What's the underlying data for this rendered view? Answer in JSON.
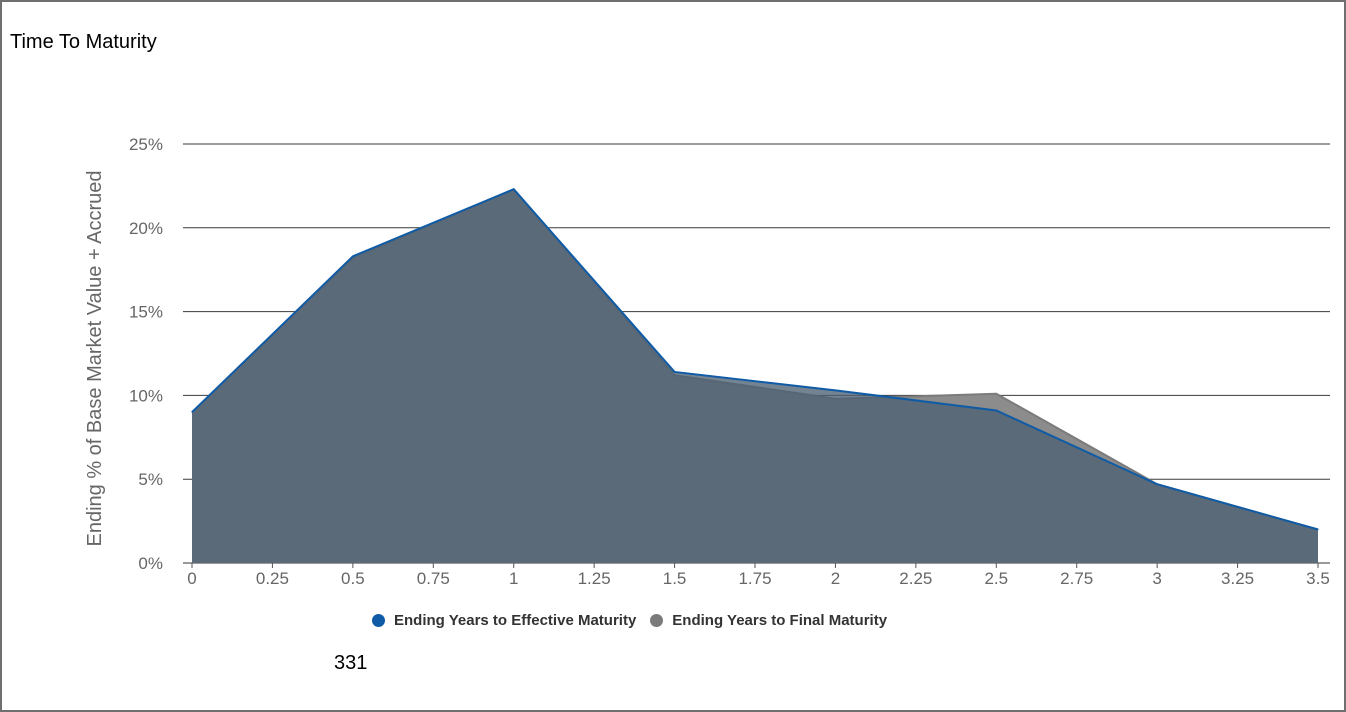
{
  "page": {
    "title": "Time To Maturity",
    "note": "331"
  },
  "chart_data": {
    "type": "area",
    "ylabel": "Ending % of Base Market Value + Accrued",
    "xlabel": "",
    "xlim": [
      0,
      3.5
    ],
    "ylim": [
      0,
      25
    ],
    "x_ticks": [
      "0",
      "0.25",
      "0.5",
      "0.75",
      "1",
      "1.25",
      "1.5",
      "1.75",
      "2",
      "2.25",
      "2.5",
      "2.75",
      "3",
      "3.25",
      "3.5"
    ],
    "y_ticks": [
      "0%",
      "5%",
      "10%",
      "15%",
      "20%",
      "25%"
    ],
    "grid": true,
    "legend_position": "bottom",
    "series": [
      {
        "name": "Ending Years to Effective Maturity",
        "color": "#0f5ba6",
        "x": [
          0,
          0.5,
          1,
          1.5,
          2,
          2.5,
          3,
          3.5
        ],
        "values": [
          9.0,
          18.3,
          22.3,
          11.4,
          10.3,
          9.1,
          4.7,
          2.0
        ]
      },
      {
        "name": "Ending Years to Final Maturity",
        "color": "#7b7b7b",
        "x": [
          0,
          0.5,
          1,
          1.5,
          2,
          2.5,
          3,
          3.5
        ],
        "values": [
          9.0,
          18.2,
          22.3,
          11.2,
          9.8,
          10.1,
          4.7,
          2.0
        ]
      }
    ]
  }
}
